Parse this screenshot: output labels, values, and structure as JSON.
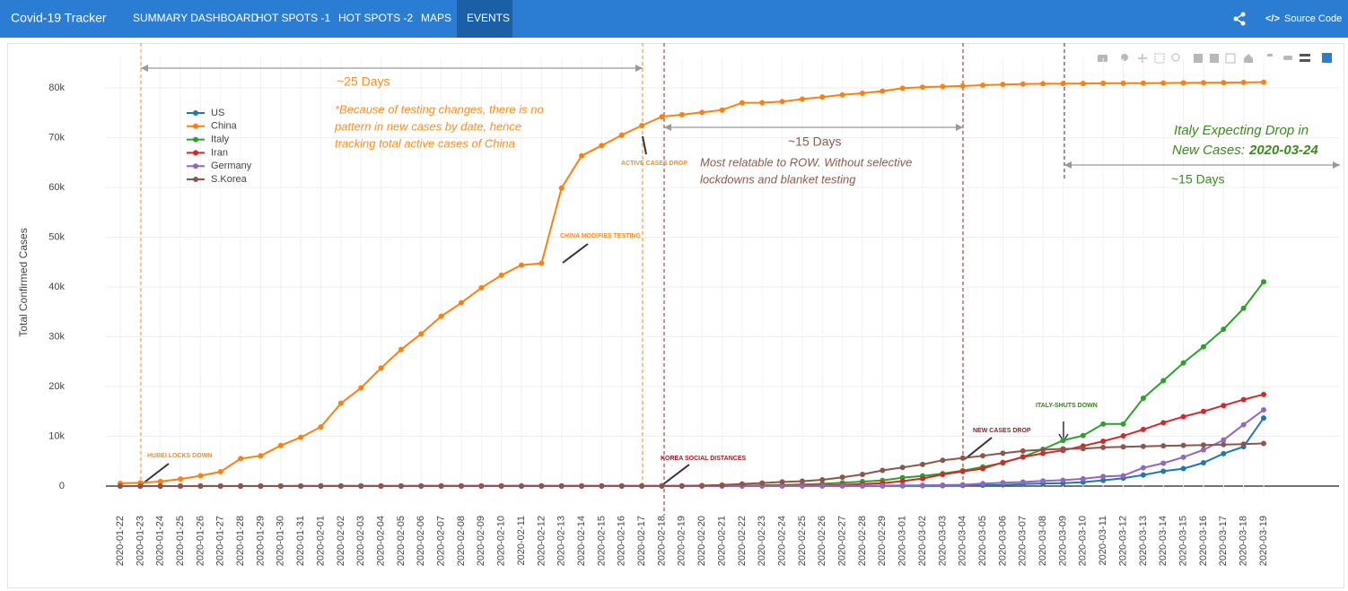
{
  "navbar": {
    "brand": "Covid-19 Tracker",
    "items": [
      "SUMMARY DASHBOARD",
      "HOT SPOTS -1",
      "HOT SPOTS -2",
      "MAPS",
      "EVENTS"
    ],
    "active": "EVENTS",
    "source": "Source Code"
  },
  "chart_data": {
    "type": "line",
    "y_label": "Total Confirmed Cases",
    "categories": [
      "2020-01-22",
      "2020-01-23",
      "2020-01-24",
      "2020-01-25",
      "2020-01-26",
      "2020-01-27",
      "2020-01-28",
      "2020-01-29",
      "2020-01-30",
      "2020-01-31",
      "2020-02-01",
      "2020-02-02",
      "2020-02-03",
      "2020-02-04",
      "2020-02-05",
      "2020-02-06",
      "2020-02-07",
      "2020-02-08",
      "2020-02-09",
      "2020-02-10",
      "2020-02-11",
      "2020-02-12",
      "2020-02-13",
      "2020-02-14",
      "2020-02-15",
      "2020-02-16",
      "2020-02-17",
      "2020-02-18",
      "2020-02-19",
      "2020-02-20",
      "2020-02-21",
      "2020-02-22",
      "2020-02-23",
      "2020-02-24",
      "2020-02-25",
      "2020-02-26",
      "2020-02-27",
      "2020-02-28",
      "2020-02-29",
      "2020-03-01",
      "2020-03-02",
      "2020-03-03",
      "2020-03-04",
      "2020-03-05",
      "2020-03-06",
      "2020-03-07",
      "2020-03-08",
      "2020-03-09",
      "2020-03-10",
      "2020-03-11",
      "2020-03-12",
      "2020-03-13",
      "2020-03-14",
      "2020-03-15",
      "2020-03-16",
      "2020-03-17",
      "2020-03-18",
      "2020-03-19"
    ],
    "series": [
      {
        "name": "US",
        "color": "#1f77b4",
        "values": [
          1,
          1,
          2,
          2,
          5,
          5,
          5,
          5,
          5,
          6,
          8,
          8,
          11,
          11,
          11,
          12,
          12,
          12,
          12,
          12,
          13,
          13,
          14,
          14,
          14,
          14,
          14,
          14,
          14,
          14,
          16,
          16,
          16,
          16,
          16,
          16,
          17,
          17,
          25,
          32,
          55,
          74,
          107,
          184,
          237,
          403,
          519,
          594,
          782,
          1147,
          1586,
          2219,
          2978,
          3500,
          4679,
          6512,
          7900,
          13663
        ]
      },
      {
        "name": "China",
        "color": "#ff7f0e",
        "values": [
          548,
          643,
          920,
          1406,
          2075,
          2877,
          5509,
          6087,
          8141,
          9802,
          11891,
          16630,
          19716,
          23707,
          27440,
          30587,
          34110,
          36814,
          39829,
          42354,
          44386,
          44759,
          59895,
          66358,
          68413,
          70513,
          72434,
          74211,
          74619,
          75077,
          75550,
          77001,
          77022,
          77241,
          77754,
          78166,
          78600,
          78928,
          79356,
          79932,
          80136,
          80261,
          80386,
          80537,
          80690,
          80770,
          80823,
          80860,
          80887,
          80921,
          80932,
          80945,
          80977,
          81003,
          81033,
          81058,
          81102,
          81156
        ]
      },
      {
        "name": "Italy",
        "color": "#2ca02c",
        "values": [
          0,
          0,
          0,
          0,
          0,
          0,
          0,
          0,
          0,
          2,
          2,
          2,
          2,
          2,
          2,
          2,
          3,
          3,
          3,
          3,
          3,
          3,
          3,
          3,
          3,
          3,
          3,
          3,
          3,
          3,
          20,
          62,
          155,
          229,
          322,
          453,
          655,
          888,
          1128,
          1694,
          2036,
          2502,
          3089,
          3858,
          4636,
          5883,
          7375,
          9172,
          10149,
          12462,
          12462,
          17660,
          21157,
          24747,
          27980,
          31506,
          35713,
          41035
        ]
      },
      {
        "name": "Iran",
        "color": "#d62728",
        "values": [
          0,
          0,
          0,
          0,
          0,
          0,
          0,
          0,
          0,
          0,
          0,
          0,
          0,
          0,
          0,
          0,
          0,
          0,
          0,
          0,
          0,
          0,
          0,
          0,
          0,
          0,
          0,
          0,
          2,
          5,
          18,
          28,
          43,
          61,
          95,
          139,
          245,
          388,
          593,
          978,
          1501,
          2336,
          2922,
          3513,
          4747,
          5823,
          6566,
          7161,
          8042,
          9000,
          10075,
          11364,
          12729,
          13938,
          14991,
          16169,
          17361,
          18407
        ]
      },
      {
        "name": "Germany",
        "color": "#9467bd",
        "values": [
          0,
          0,
          0,
          0,
          0,
          1,
          4,
          4,
          4,
          5,
          8,
          10,
          12,
          12,
          12,
          12,
          13,
          13,
          14,
          14,
          16,
          16,
          16,
          16,
          16,
          16,
          16,
          16,
          16,
          16,
          16,
          16,
          16,
          16,
          17,
          27,
          46,
          48,
          79,
          130,
          159,
          196,
          262,
          482,
          670,
          799,
          1040,
          1176,
          1457,
          1908,
          2078,
          3675,
          4585,
          5795,
          7272,
          9257,
          12327,
          15320
        ]
      },
      {
        "name": "S.Korea",
        "color": "#8c564b",
        "values": [
          1,
          1,
          2,
          2,
          3,
          4,
          4,
          4,
          4,
          11,
          12,
          15,
          15,
          16,
          19,
          23,
          24,
          24,
          25,
          27,
          28,
          28,
          28,
          28,
          28,
          29,
          30,
          31,
          31,
          104,
          204,
          433,
          602,
          833,
          977,
          1261,
          1766,
          2337,
          3150,
          3736,
          4335,
          5186,
          5621,
          6088,
          6593,
          7041,
          7314,
          7478,
          7513,
          7755,
          7869,
          7979,
          8086,
          8162,
          8236,
          8320,
          8413,
          8565
        ]
      }
    ],
    "ylim": [
      -1500,
      86000
    ],
    "yticks": [
      0,
      {
        "value": 10000,
        "label": "10k"
      },
      {
        "value": 20000,
        "label": "20k"
      },
      {
        "value": 30000,
        "label": "30k"
      },
      {
        "value": 40000,
        "label": "40k"
      },
      {
        "value": 50000,
        "label": "50k"
      },
      {
        "value": 60000,
        "label": "60k"
      },
      {
        "value": 70000,
        "label": "70k"
      },
      {
        "value": 80000,
        "label": "80k"
      }
    ],
    "grid": true,
    "legend": "upper left",
    "annotations": [
      {
        "text": "~25 Days",
        "color": "#ff8c1a"
      },
      {
        "text": "*Because of testing changes, there is no",
        "color": "#ff8c1a"
      },
      {
        "text": "pattern in new cases by date, hence",
        "color": "#ff8c1a"
      },
      {
        "text": "tracking total active cases of China",
        "color": "#ff8c1a"
      },
      {
        "text": "CHINA MODIFIES TESTING",
        "color": "#ff8c1a"
      },
      {
        "text": "ACTIVE CASES DROP",
        "color": "#ff8c1a"
      },
      {
        "text": "HUBEI LOCKS DOWN",
        "color": "#ff8c1a"
      },
      {
        "text": "KOREA SOCIAL DISTANCES",
        "color": "#a3191e"
      },
      {
        "text": "NEW CASES DROP",
        "color": "#a3191e"
      },
      {
        "text": "ITALY-SHUTS DOWN",
        "color": "#2a8a10"
      },
      {
        "text": "~15 Days",
        "color": "#8c5a4b"
      },
      {
        "text": "Most relatable to ROW. Without selective",
        "color": "#8c5a4b"
      },
      {
        "text": "lockdowns and blanket testing",
        "color": "#8c5a4b"
      },
      {
        "text": "Italy Expecting Drop in",
        "color": "#3c8a1a"
      },
      {
        "text": "New Cases:",
        "color": "#3c8a1a"
      },
      {
        "text": "2020-03-24",
        "color": "#3c8a1a"
      },
      {
        "text": "~15 Days",
        "color": "#3c8a1a"
      }
    ]
  }
}
